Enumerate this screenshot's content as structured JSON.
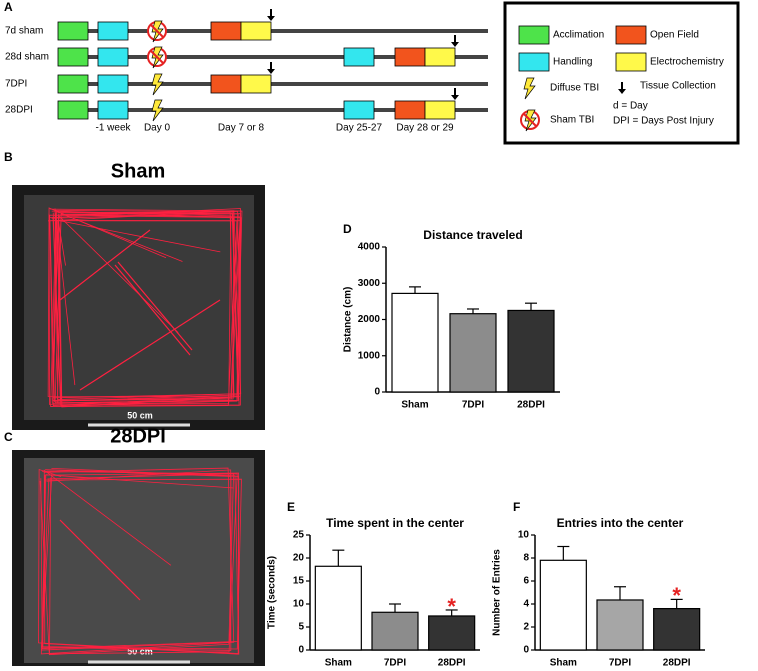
{
  "panel_labels": [
    "A",
    "B",
    "C",
    "D",
    "E",
    "F"
  ],
  "timeline": {
    "rows": [
      {
        "label": "7d sham"
      },
      {
        "label": "28d sham"
      },
      {
        "label": "7DPI"
      },
      {
        "label": "28DPI"
      }
    ],
    "day_labels": [
      "-1 week",
      "Day 0",
      "Day 7 or 8",
      "Day 25-27",
      "Day 28 or 29"
    ]
  },
  "legend": [
    "Acclimation",
    "Open Field",
    "Handling",
    "Electrochemistry",
    "Diffuse TBI",
    "Tissue Collection",
    "Sham TBI",
    "d = Day",
    "DPI = Days Post Injury"
  ],
  "images": [
    {
      "title": "Sham",
      "scale": "50 cm"
    },
    {
      "title": "28DPI",
      "scale": "50 cm"
    }
  ],
  "chart_data": [
    {
      "type": "bar",
      "title": "Distance traveled",
      "y_label": "Distance (cm)",
      "categories": [
        "Sham",
        "7DPI",
        "28DPI"
      ],
      "values": [
        2720,
        2160,
        2250
      ],
      "errors": [
        180,
        130,
        200
      ],
      "colors": [
        "#ffffff",
        "#8c8c8c",
        "#333333"
      ],
      "ylim": [
        0,
        4000
      ],
      "yticks": [
        0,
        1000,
        2000,
        3000,
        4000
      ]
    },
    {
      "type": "bar",
      "title": "Time spent in the center",
      "y_label": "Time (seconds)",
      "categories": [
        "Sham",
        "7DPI",
        "28DPI"
      ],
      "values": [
        18.2,
        8.2,
        7.4
      ],
      "errors": [
        3.5,
        1.8,
        1.3
      ],
      "colors": [
        "#ffffff",
        "#8c8c8c",
        "#333333"
      ],
      "ylim": [
        0,
        25
      ],
      "yticks": [
        0,
        5,
        10,
        15,
        20,
        25
      ],
      "annotation": {
        "text": "*",
        "category": "28DPI"
      }
    },
    {
      "type": "bar",
      "title": "Entries into the center",
      "y_label": "Number of Entries",
      "categories": [
        "Sham",
        "7DPI",
        "28DPI"
      ],
      "values": [
        7.8,
        4.35,
        3.6
      ],
      "errors": [
        1.2,
        1.15,
        0.8
      ],
      "colors": [
        "#ffffff",
        "#a6a6a6",
        "#333333"
      ],
      "ylim": [
        0,
        10
      ],
      "yticks": [
        0,
        2,
        4,
        6,
        8,
        10
      ],
      "annotation": {
        "text": "*",
        "category": "28DPI"
      }
    }
  ]
}
